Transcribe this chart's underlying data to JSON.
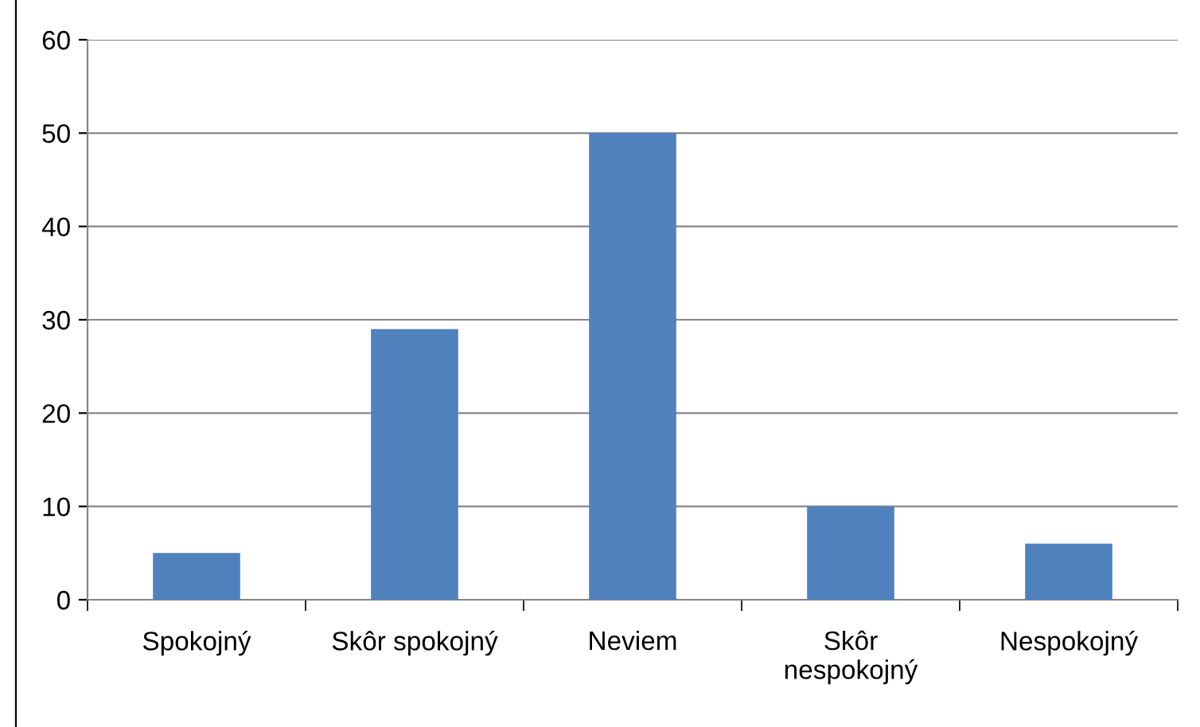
{
  "chart_data": {
    "type": "bar",
    "categories": [
      "Spokojný",
      "Skôr spokojný",
      "Neviem",
      "Skôr\nnespokojný",
      "Nespokojný"
    ],
    "values": [
      5,
      29,
      50,
      10,
      6
    ],
    "color": "#4f81bd",
    "ylim": [
      0,
      60
    ],
    "yticks": [
      0,
      10,
      20,
      30,
      40,
      50,
      60
    ],
    "grid": "y",
    "legend": false
  }
}
